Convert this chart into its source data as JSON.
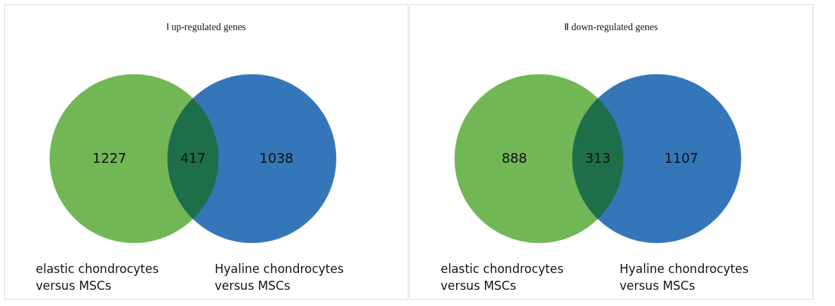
{
  "chart_data": [
    {
      "type": "other",
      "title": "Ⅰ up-regulated genes",
      "categories": [
        null,
        null,
        null
      ],
      "values": [
        1227,
        417,
        1038
      ],
      "colors": [
        "#6ab44c",
        "#1e6e45",
        "#2a6fb4"
      ],
      "data_labels": true,
      "annotations": [
        "elastic chondrocytes\nversus MSCs",
        "Hyaline chondrocytes\nversus MSCs"
      ]
    },
    {
      "type": "other",
      "title": "Ⅱ down-regulated genes",
      "categories": [
        null,
        null,
        null
      ],
      "values": [
        888,
        313,
        1107
      ],
      "colors": [
        "#6ab44c",
        "#1e6e45",
        "#2a6fb4"
      ],
      "data_labels": true,
      "annotations": [
        "elastic chondrocytes\nversus MSCs",
        "Hyaline chondrocytes\nversus MSCs"
      ]
    }
  ]
}
